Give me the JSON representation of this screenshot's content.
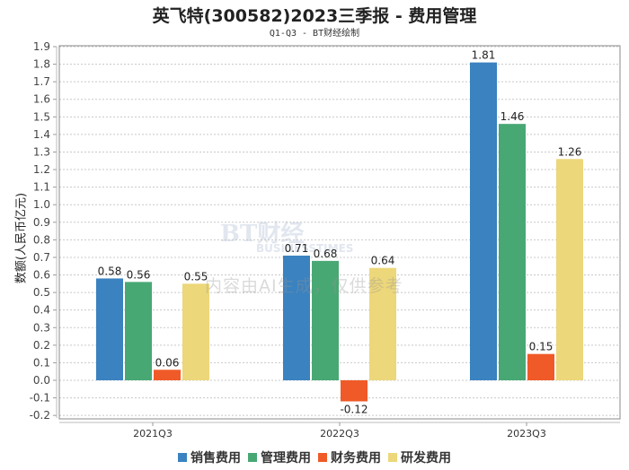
{
  "chart_data": {
    "type": "bar",
    "title": "英飞特(300582)2023三季报 - 费用管理",
    "subtitle": "Q1-Q3 - BT财经绘制",
    "xlabel": "",
    "ylabel": "数额(人民币亿元)",
    "ylim": [
      -0.2,
      1.9
    ],
    "ytick_step": 0.1,
    "grid": true,
    "legend_position": "bottom",
    "categories": [
      "2021Q3",
      "2022Q3",
      "2023Q3"
    ],
    "series": [
      {
        "name": "销售费用",
        "color": "#3a82c0",
        "values": [
          0.58,
          0.71,
          1.81
        ]
      },
      {
        "name": "管理费用",
        "color": "#48a874",
        "values": [
          0.56,
          0.68,
          1.46
        ]
      },
      {
        "name": "财务费用",
        "color": "#f05a28",
        "values": [
          0.06,
          -0.12,
          0.15
        ]
      },
      {
        "name": "研发费用",
        "color": "#ecd77a",
        "values": [
          0.55,
          0.64,
          1.26
        ]
      }
    ]
  },
  "watermark": "内容由AI生成，仅供参考",
  "logo": "BT财经 BUSINESSTIMES"
}
